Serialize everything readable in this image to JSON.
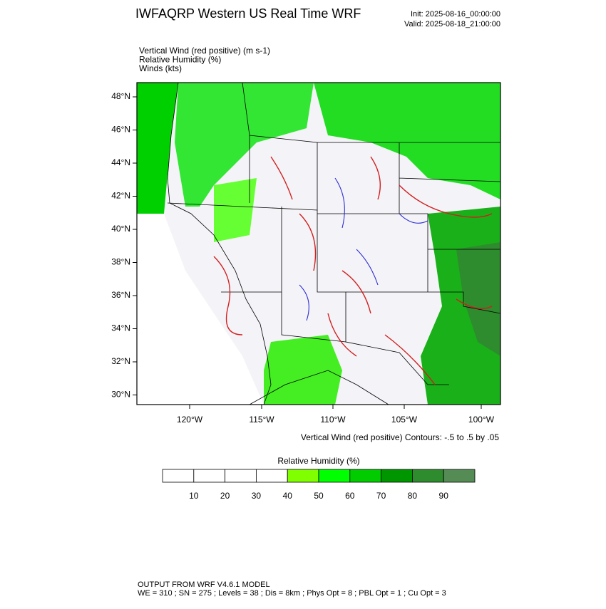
{
  "header": {
    "title": "IWFAQRP Western US Real Time WRF",
    "init": "Init: 2025-08-16_00:00:00",
    "valid": "Valid: 2025-08-18_21:00:00"
  },
  "fields": [
    "Vertical Wind (red positive)   (m s-1)",
    "Relative Humidity   (%)",
    "Winds   (kts)"
  ],
  "map": {
    "lat_labels": [
      "48°N",
      "46°N",
      "44°N",
      "42°N",
      "40°N",
      "38°N",
      "36°N",
      "34°N",
      "32°N",
      "30°N"
    ],
    "lon_labels": [
      "120°W",
      "115°W",
      "110°W",
      "105°W",
      "100°W"
    ],
    "contour_note": "Vertical Wind (red positive) Contours: -.5 to .5 by .05"
  },
  "colorbar": {
    "title": "Relative Humidity  (%)",
    "labels": [
      10,
      20,
      30,
      40,
      50,
      60,
      70,
      80,
      90
    ],
    "colors": [
      "#ffffff",
      "#ffffff",
      "#ffffff",
      "#ffffff",
      "#80ff00",
      "#00ff00",
      "#00cc00",
      "#009600",
      "#2e8b2e",
      "#558b55"
    ]
  },
  "footer": {
    "line1": "OUTPUT FROM WRF V4.6.1 MODEL",
    "line2": "WE = 310 ; SN = 275 ; Levels = 38 ; Dis = 8km ; Phys Opt = 8 ; PBL Opt = 1 ; Cu Opt = 3"
  }
}
